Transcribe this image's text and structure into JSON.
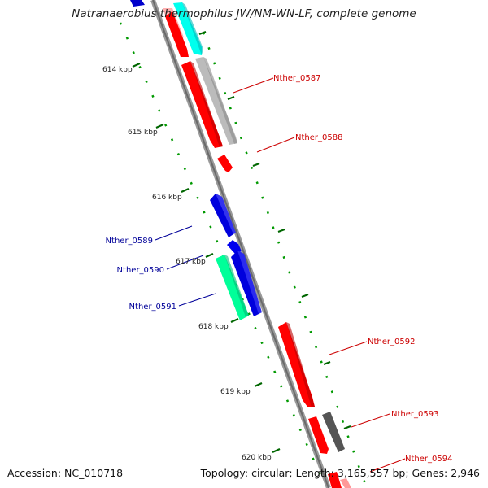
{
  "title": "Natranaerobius thermophilus JW/NM-WN-LF, complete genome",
  "footer": {
    "accession": "Accession: NC_010718",
    "summary": "Topology: circular; Length: 3,165,557 bp; Genes: 2,946"
  },
  "ticks": [
    "614 kbp",
    "615 kbp",
    "616 kbp",
    "617 kbp",
    "618 kbp",
    "619 kbp",
    "620 kbp"
  ],
  "gene_labels": [
    {
      "id": "Nther_0587",
      "strand": "forward"
    },
    {
      "id": "Nther_0588",
      "strand": "forward"
    },
    {
      "id": "Nther_0589",
      "strand": "reverse"
    },
    {
      "id": "Nther_0590",
      "strand": "reverse"
    },
    {
      "id": "Nther_0591",
      "strand": "reverse"
    },
    {
      "id": "Nther_0592",
      "strand": "forward"
    },
    {
      "id": "Nther_0593",
      "strand": "forward"
    },
    {
      "id": "Nther_0594",
      "strand": "forward"
    }
  ],
  "colors": {
    "forward_label": "#cc0000",
    "reverse_label": "#000099",
    "cds_forward": "#ff0000",
    "cds_reverse": "#0000ee",
    "rrna": "#00ffcc",
    "trna": "#ffaaaa",
    "gray_feature": "#aaaaaa",
    "dark_feature": "#555555",
    "tick_major": "#006600",
    "backbone": "#888888"
  }
}
